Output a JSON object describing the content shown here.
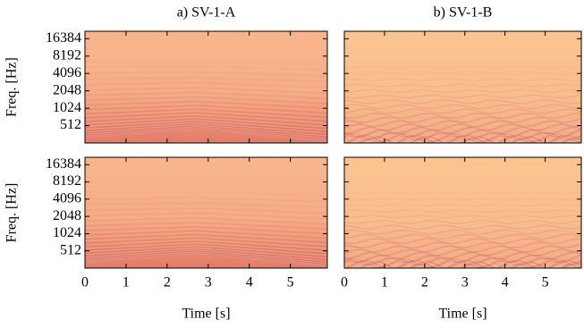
{
  "chart_data": [
    {
      "type": "spectrogram",
      "title": "a) SV-1-A",
      "ylabel": "Freq. [Hz]",
      "yscale": "log",
      "xlim": [
        0,
        5.9
      ],
      "xticks": [
        0,
        1,
        2,
        3,
        4,
        5
      ],
      "ylim": [
        256,
        22050
      ],
      "yticks": [
        512,
        1024,
        2048,
        4096,
        8192,
        16384
      ],
      "show_xtick_labels": false,
      "show_ytick_labels": true,
      "pattern": "ridge"
    },
    {
      "type": "spectrogram",
      "title": "b) SV-1-B",
      "yscale": "log",
      "xlim": [
        0,
        5.9
      ],
      "xticks": [
        0,
        1,
        2,
        3,
        4,
        5
      ],
      "ylim": [
        256,
        22050
      ],
      "yticks": [
        512,
        1024,
        2048,
        4096,
        8192,
        16384
      ],
      "show_xtick_labels": false,
      "show_ytick_labels": false,
      "pattern": "wave"
    },
    {
      "type": "spectrogram",
      "ylabel": "Freq. [Hz]",
      "xlabel": "Time [s]",
      "yscale": "log",
      "xlim": [
        0,
        5.9
      ],
      "xticks": [
        0,
        1,
        2,
        3,
        4,
        5
      ],
      "ylim": [
        256,
        22050
      ],
      "yticks": [
        512,
        1024,
        2048,
        4096,
        8192,
        16384
      ],
      "show_xtick_labels": true,
      "show_ytick_labels": true,
      "pattern": "ridge"
    },
    {
      "type": "spectrogram",
      "xlabel": "Time [s]",
      "yscale": "log",
      "xlim": [
        0,
        5.9
      ],
      "xticks": [
        0,
        1,
        2,
        3,
        4,
        5
      ],
      "ylim": [
        256,
        22050
      ],
      "yticks": [
        512,
        1024,
        2048,
        4096,
        8192,
        16384
      ],
      "show_xtick_labels": true,
      "show_ytick_labels": false,
      "pattern": "wave"
    }
  ]
}
